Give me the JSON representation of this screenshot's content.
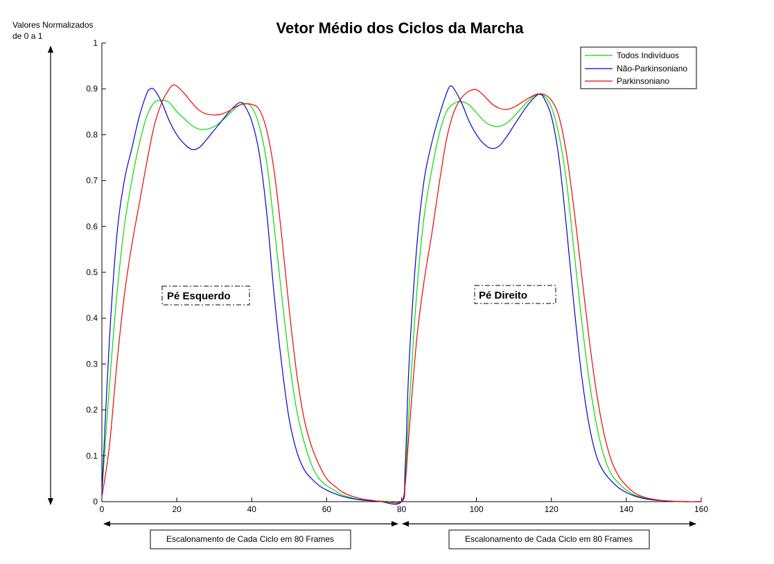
{
  "chart_data": {
    "type": "line",
    "title": "Vetor Médio dos Ciclos da Marcha",
    "ylabel_lines": [
      "Valores Normalizados",
      "de 0 a 1"
    ],
    "xlim": [
      0,
      160
    ],
    "ylim": [
      0,
      1
    ],
    "xticks": [
      0,
      20,
      40,
      60,
      80,
      100,
      120,
      140,
      160
    ],
    "yticks": [
      0,
      0.1,
      0.2,
      0.3,
      0.4,
      0.5,
      0.6,
      0.7,
      0.8,
      0.9,
      1
    ],
    "xtick_labels": [
      "0",
      "20",
      "40",
      "60",
      "80",
      "100",
      "120",
      "140",
      "160"
    ],
    "ytick_labels": [
      "0",
      "0.1",
      "0.2",
      "0.3",
      "0.4",
      "0.5",
      "0.6",
      "0.7",
      "0.8",
      "0.9",
      "1"
    ],
    "grid": false,
    "legend_position": "top-right",
    "series": [
      {
        "name": "Todos Indivíduos",
        "color": "#00dd00",
        "points": [
          [
            0,
            0.02
          ],
          [
            2,
            0.25
          ],
          [
            4,
            0.45
          ],
          [
            6,
            0.6
          ],
          [
            8,
            0.7
          ],
          [
            10,
            0.78
          ],
          [
            12,
            0.84
          ],
          [
            14,
            0.87
          ],
          [
            16,
            0.875
          ],
          [
            18,
            0.87
          ],
          [
            20,
            0.85
          ],
          [
            22,
            0.835
          ],
          [
            24,
            0.82
          ],
          [
            26,
            0.812
          ],
          [
            28,
            0.812
          ],
          [
            30,
            0.818
          ],
          [
            32,
            0.83
          ],
          [
            34,
            0.845
          ],
          [
            36,
            0.86
          ],
          [
            38,
            0.868
          ],
          [
            40,
            0.86
          ],
          [
            42,
            0.82
          ],
          [
            44,
            0.74
          ],
          [
            46,
            0.6
          ],
          [
            48,
            0.45
          ],
          [
            50,
            0.31
          ],
          [
            52,
            0.2
          ],
          [
            54,
            0.13
          ],
          [
            56,
            0.08
          ],
          [
            58,
            0.05
          ],
          [
            60,
            0.035
          ],
          [
            62,
            0.025
          ],
          [
            64,
            0.015
          ],
          [
            66,
            0.01
          ],
          [
            68,
            0.006
          ],
          [
            70,
            0.004
          ],
          [
            72,
            0.002
          ],
          [
            74,
            0.001
          ],
          [
            76,
            0.001
          ],
          [
            80,
            0.0
          ],
          [
            81,
            0.05
          ],
          [
            82,
            0.2
          ],
          [
            84,
            0.45
          ],
          [
            86,
            0.62
          ],
          [
            88,
            0.72
          ],
          [
            90,
            0.8
          ],
          [
            92,
            0.85
          ],
          [
            94,
            0.868
          ],
          [
            96,
            0.872
          ],
          [
            98,
            0.865
          ],
          [
            100,
            0.848
          ],
          [
            102,
            0.83
          ],
          [
            104,
            0.82
          ],
          [
            106,
            0.818
          ],
          [
            108,
            0.825
          ],
          [
            110,
            0.84
          ],
          [
            112,
            0.858
          ],
          [
            114,
            0.875
          ],
          [
            116,
            0.887
          ],
          [
            118,
            0.885
          ],
          [
            120,
            0.86
          ],
          [
            122,
            0.8
          ],
          [
            124,
            0.7
          ],
          [
            126,
            0.55
          ],
          [
            128,
            0.4
          ],
          [
            130,
            0.27
          ],
          [
            132,
            0.17
          ],
          [
            134,
            0.1
          ],
          [
            136,
            0.06
          ],
          [
            138,
            0.04
          ],
          [
            140,
            0.025
          ],
          [
            142,
            0.015
          ],
          [
            144,
            0.01
          ],
          [
            146,
            0.006
          ],
          [
            148,
            0.004
          ],
          [
            150,
            0.002
          ],
          [
            152,
            0.001
          ],
          [
            156,
            0.0
          ],
          [
            160,
            0.0
          ]
        ]
      },
      {
        "name": "Não-Parkinsoniano",
        "color": "#0000cc",
        "points": [
          [
            0,
            0.02
          ],
          [
            2,
            0.35
          ],
          [
            4,
            0.58
          ],
          [
            6,
            0.7
          ],
          [
            8,
            0.77
          ],
          [
            10,
            0.84
          ],
          [
            12,
            0.89
          ],
          [
            13,
            0.9
          ],
          [
            14,
            0.898
          ],
          [
            16,
            0.87
          ],
          [
            18,
            0.83
          ],
          [
            20,
            0.8
          ],
          [
            22,
            0.78
          ],
          [
            24,
            0.768
          ],
          [
            26,
            0.772
          ],
          [
            28,
            0.79
          ],
          [
            30,
            0.81
          ],
          [
            32,
            0.83
          ],
          [
            34,
            0.85
          ],
          [
            36,
            0.866
          ],
          [
            37,
            0.87
          ],
          [
            38,
            0.865
          ],
          [
            40,
            0.83
          ],
          [
            42,
            0.76
          ],
          [
            44,
            0.63
          ],
          [
            46,
            0.45
          ],
          [
            48,
            0.3
          ],
          [
            50,
            0.18
          ],
          [
            52,
            0.11
          ],
          [
            54,
            0.07
          ],
          [
            56,
            0.05
          ],
          [
            58,
            0.035
          ],
          [
            60,
            0.025
          ],
          [
            62,
            0.018
          ],
          [
            64,
            0.012
          ],
          [
            66,
            0.008
          ],
          [
            68,
            0.005
          ],
          [
            70,
            0.003
          ],
          [
            72,
            0.002
          ],
          [
            74,
            0.001
          ],
          [
            80,
            0.0
          ],
          [
            81,
            0.08
          ],
          [
            82,
            0.3
          ],
          [
            84,
            0.55
          ],
          [
            86,
            0.7
          ],
          [
            88,
            0.78
          ],
          [
            90,
            0.84
          ],
          [
            92,
            0.89
          ],
          [
            93,
            0.906
          ],
          [
            94,
            0.9
          ],
          [
            96,
            0.87
          ],
          [
            98,
            0.83
          ],
          [
            100,
            0.8
          ],
          [
            102,
            0.78
          ],
          [
            104,
            0.77
          ],
          [
            106,
            0.775
          ],
          [
            108,
            0.795
          ],
          [
            110,
            0.82
          ],
          [
            112,
            0.845
          ],
          [
            114,
            0.868
          ],
          [
            116,
            0.885
          ],
          [
            117,
            0.888
          ],
          [
            118,
            0.88
          ],
          [
            120,
            0.84
          ],
          [
            122,
            0.75
          ],
          [
            124,
            0.6
          ],
          [
            126,
            0.43
          ],
          [
            128,
            0.28
          ],
          [
            130,
            0.17
          ],
          [
            132,
            0.1
          ],
          [
            134,
            0.065
          ],
          [
            136,
            0.045
          ],
          [
            138,
            0.03
          ],
          [
            140,
            0.02
          ],
          [
            142,
            0.013
          ],
          [
            144,
            0.008
          ],
          [
            146,
            0.005
          ],
          [
            148,
            0.003
          ],
          [
            150,
            0.002
          ],
          [
            152,
            0.001
          ],
          [
            156,
            0.0
          ],
          [
            160,
            0.0
          ]
        ]
      },
      {
        "name": "Parkinsoniano",
        "color": "#ee0000",
        "points": [
          [
            0,
            0.01
          ],
          [
            2,
            0.12
          ],
          [
            4,
            0.3
          ],
          [
            6,
            0.45
          ],
          [
            8,
            0.56
          ],
          [
            10,
            0.65
          ],
          [
            12,
            0.74
          ],
          [
            14,
            0.82
          ],
          [
            16,
            0.87
          ],
          [
            18,
            0.9
          ],
          [
            19,
            0.908
          ],
          [
            20,
            0.906
          ],
          [
            22,
            0.89
          ],
          [
            24,
            0.87
          ],
          [
            26,
            0.853
          ],
          [
            28,
            0.845
          ],
          [
            30,
            0.843
          ],
          [
            32,
            0.845
          ],
          [
            34,
            0.852
          ],
          [
            36,
            0.862
          ],
          [
            38,
            0.867
          ],
          [
            40,
            0.866
          ],
          [
            42,
            0.855
          ],
          [
            44,
            0.81
          ],
          [
            46,
            0.72
          ],
          [
            48,
            0.58
          ],
          [
            50,
            0.42
          ],
          [
            52,
            0.28
          ],
          [
            54,
            0.18
          ],
          [
            56,
            0.12
          ],
          [
            58,
            0.08
          ],
          [
            60,
            0.05
          ],
          [
            62,
            0.035
          ],
          [
            64,
            0.022
          ],
          [
            66,
            0.014
          ],
          [
            68,
            0.009
          ],
          [
            70,
            0.005
          ],
          [
            72,
            0.003
          ],
          [
            74,
            0.001
          ],
          [
            80,
            0.0
          ],
          [
            81,
            0.04
          ],
          [
            82,
            0.15
          ],
          [
            84,
            0.35
          ],
          [
            86,
            0.48
          ],
          [
            88,
            0.58
          ],
          [
            90,
            0.69
          ],
          [
            92,
            0.79
          ],
          [
            94,
            0.85
          ],
          [
            96,
            0.88
          ],
          [
            98,
            0.895
          ],
          [
            100,
            0.898
          ],
          [
            102,
            0.885
          ],
          [
            104,
            0.868
          ],
          [
            106,
            0.858
          ],
          [
            108,
            0.855
          ],
          [
            110,
            0.86
          ],
          [
            112,
            0.87
          ],
          [
            114,
            0.88
          ],
          [
            116,
            0.888
          ],
          [
            118,
            0.888
          ],
          [
            120,
            0.875
          ],
          [
            122,
            0.84
          ],
          [
            124,
            0.76
          ],
          [
            126,
            0.64
          ],
          [
            128,
            0.5
          ],
          [
            130,
            0.36
          ],
          [
            132,
            0.24
          ],
          [
            134,
            0.15
          ],
          [
            136,
            0.09
          ],
          [
            138,
            0.055
          ],
          [
            140,
            0.035
          ],
          [
            142,
            0.02
          ],
          [
            144,
            0.012
          ],
          [
            146,
            0.007
          ],
          [
            148,
            0.004
          ],
          [
            150,
            0.002
          ],
          [
            152,
            0.001
          ],
          [
            156,
            0.0
          ],
          [
            160,
            0.0
          ]
        ]
      }
    ],
    "annotations": [
      {
        "text": "Pé Esquerdo"
      },
      {
        "text": "Pé Direito"
      }
    ],
    "bottom_boxes": [
      {
        "text": "Escalonamento de Cada Ciclo em 80 Frames"
      },
      {
        "text": "Escalonamento de Cada Ciclo em 80 Frames"
      }
    ]
  }
}
